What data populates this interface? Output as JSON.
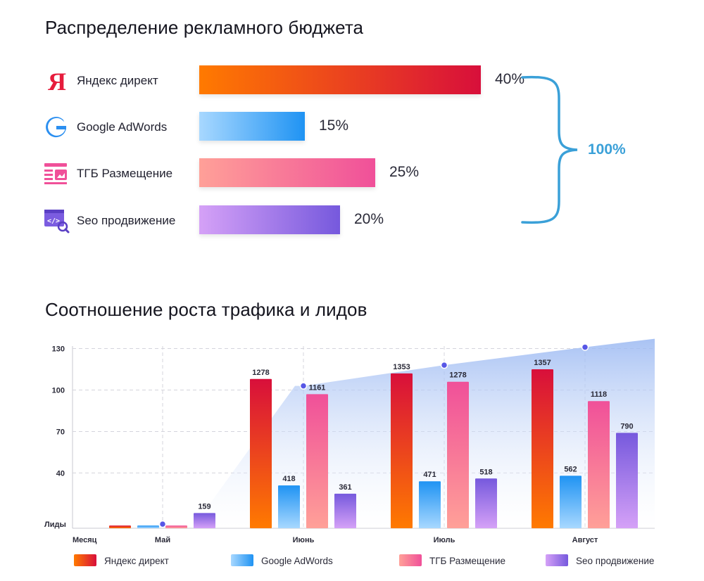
{
  "titles": {
    "budget": "Распределение рекламного бюджета",
    "traffic": "Соотношение роста трафика и лидов"
  },
  "budget": {
    "rows": [
      {
        "label": "Яндекс директ",
        "percent": 40,
        "percent_text": "40%",
        "icon": "yandex-icon"
      },
      {
        "label": "Google AdWords",
        "percent": 15,
        "percent_text": "15%",
        "icon": "google-icon"
      },
      {
        "label": "ТГБ Размещение",
        "percent": 25,
        "percent_text": "25%",
        "icon": "tgb-icon"
      },
      {
        "label": "Seo продвижение",
        "percent": 20,
        "percent_text": "20%",
        "icon": "seo-icon"
      }
    ],
    "total_text": "100%"
  },
  "colors": {
    "yandex": [
      "#ff7a00",
      "#d80f3b"
    ],
    "google": [
      "#a8d8ff",
      "#1f93f3"
    ],
    "tgb": [
      "#ffa098",
      "#f05099"
    ],
    "seo": [
      "#d5a1f7",
      "#7659dd"
    ],
    "brace": "#3aa0d8",
    "area_top": "#9ab8f2",
    "marker": "#5757e6"
  },
  "chart_data": {
    "type": "bar",
    "ylabel": "Лиды",
    "xlabel": "Месяц",
    "yticks": [
      40,
      70,
      100,
      130
    ],
    "ylim": [
      0,
      130
    ],
    "categories": [
      "Май",
      "Июнь",
      "Июль",
      "Август"
    ],
    "series": [
      {
        "name": "Яндекс директ",
        "values": [
          2,
          108,
          112,
          115
        ],
        "labels": [
          "",
          "1278",
          "1353",
          "1357"
        ]
      },
      {
        "name": "Google AdWords",
        "values": [
          2,
          31,
          34,
          38
        ],
        "labels": [
          "",
          "418",
          "471",
          "562"
        ]
      },
      {
        "name": "ТГБ Размещение",
        "values": [
          2,
          97,
          106,
          92
        ],
        "labels": [
          "",
          "1161",
          "1278",
          "1118"
        ]
      },
      {
        "name": "Seo продвижение",
        "values": [
          11,
          25,
          36,
          69
        ],
        "labels": [
          "159",
          "361",
          "518",
          "790"
        ]
      }
    ],
    "traffic_area": {
      "markers": [
        3,
        103,
        118,
        131
      ]
    },
    "legend": [
      "Яндекс директ",
      "Google AdWords",
      "ТГБ Размещение",
      "Seo продвижение"
    ],
    "legend_position": "bottom",
    "grid": true
  }
}
